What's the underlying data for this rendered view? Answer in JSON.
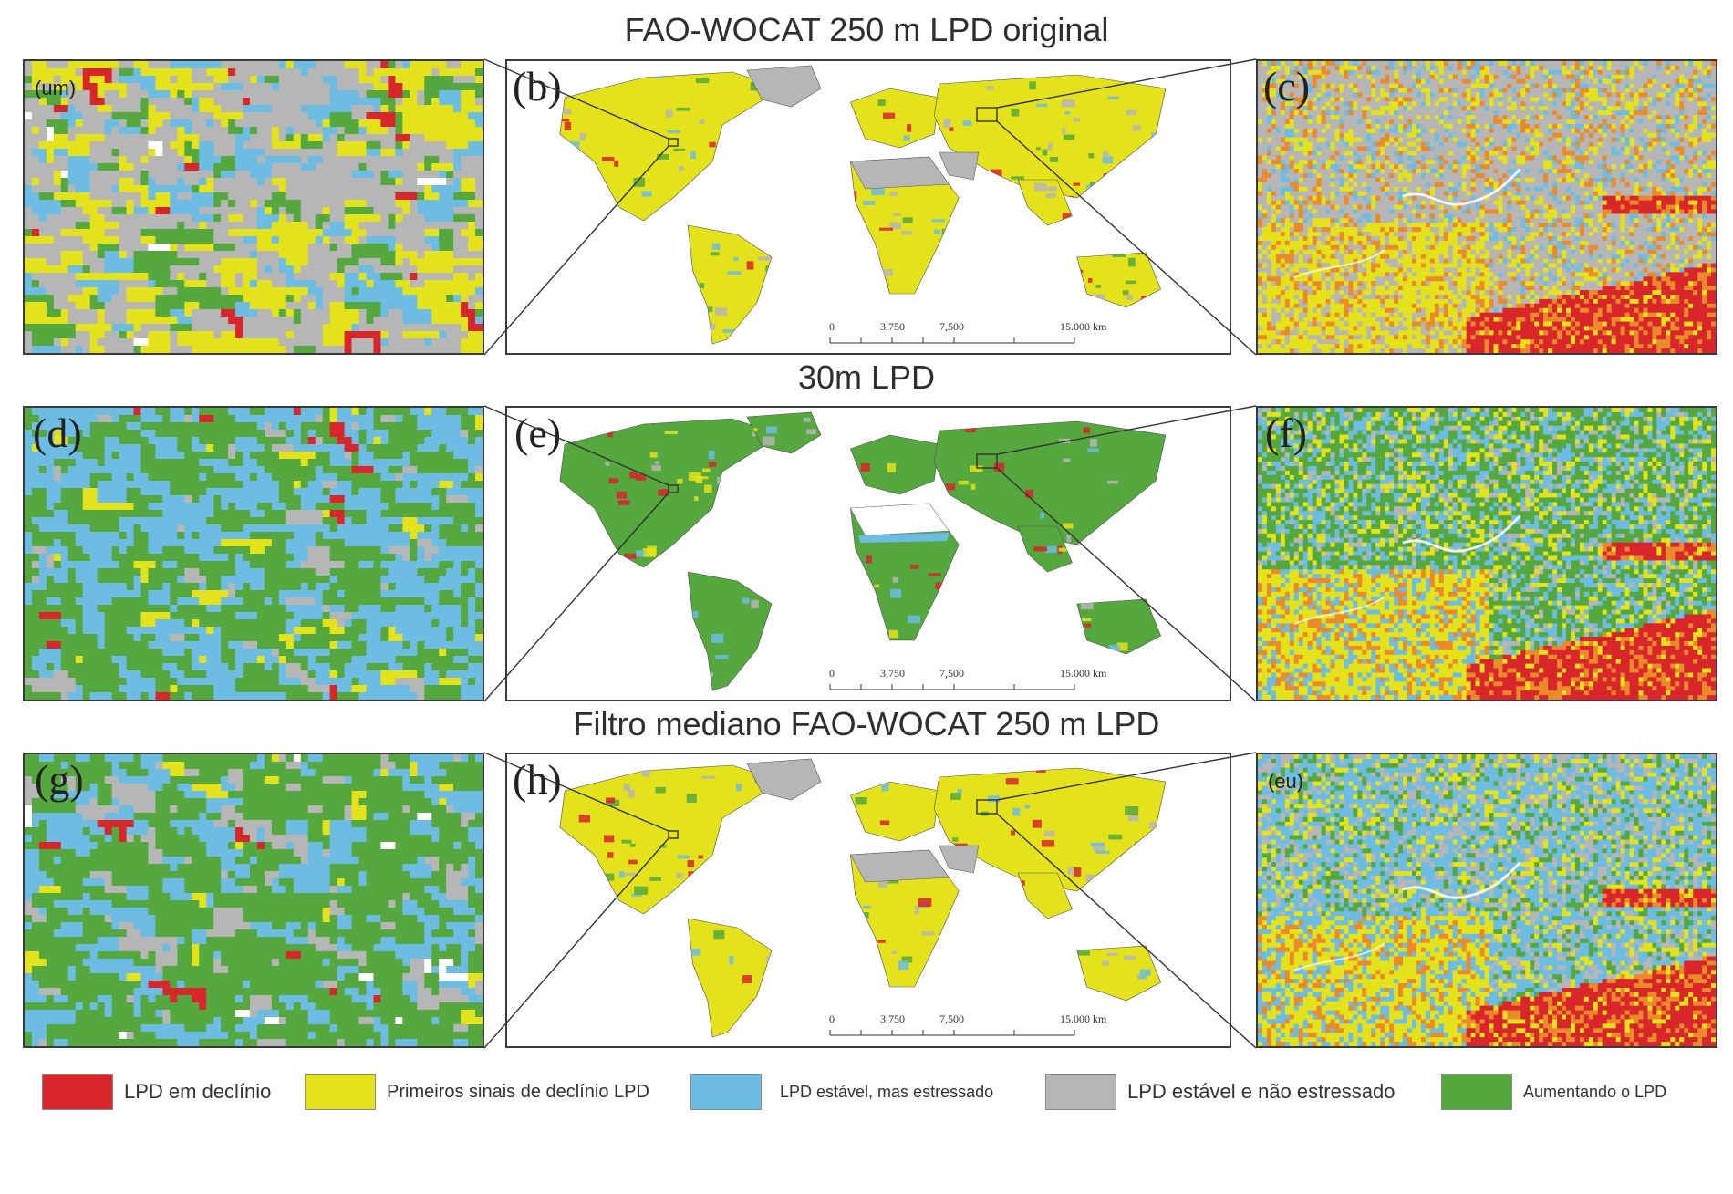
{
  "rows": [
    {
      "title": "FAO-WOCAT 250 m LPD original",
      "left_label": "(um)",
      "map_label": "(b)",
      "right_label": "(c)"
    },
    {
      "title": "30m LPD",
      "left_label": "(d)",
      "map_label": "(e)",
      "right_label": "(f)"
    },
    {
      "title": "Filtro mediano FAO-WOCAT 250 m LPD",
      "left_label": "(g)",
      "map_label": "(h)",
      "right_label": "(eu)"
    }
  ],
  "scale_bar": {
    "t0": "0",
    "t1": "3,750",
    "t2": "7,500",
    "t3": "15.000 km"
  },
  "legend": [
    {
      "label": "LPD em declínio",
      "color": "#d8262b"
    },
    {
      "label": "Primeiros sinais de declínio LPD",
      "color": "#e4e21a"
    },
    {
      "label": "LPD estável, mas estressado",
      "color": "#6cbce3"
    },
    {
      "label": "LPD estável e não estressado",
      "color": "#b6b6b6"
    },
    {
      "label": "Aumentando o LPD",
      "color": "#55a83e"
    }
  ],
  "colors": {
    "declining": "#d8262b",
    "early": "#e4e21a",
    "stressed": "#6cbce3",
    "stable": "#b6b6b6",
    "increasing": "#55a83e"
  }
}
